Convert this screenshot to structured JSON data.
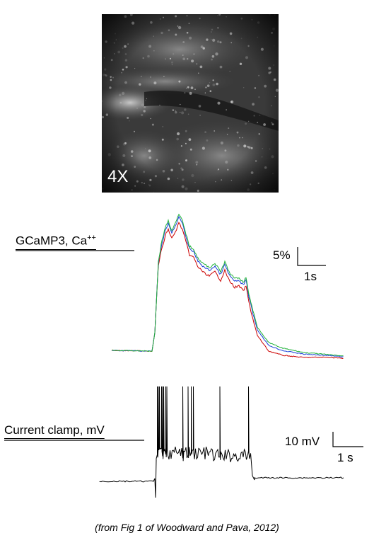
{
  "micrograph": {
    "magnification_label": "4X"
  },
  "calcium_panel": {
    "label_main": "GCaMP3, Ca",
    "label_superscript": "++",
    "scale_y_label": "5%",
    "scale_x_label": "1s",
    "trace_colors": [
      "#cc0000",
      "#1a3fd9",
      "#22b33a"
    ]
  },
  "voltage_panel": {
    "label": "Current clamp, mV",
    "scale_y_label": "10 mV",
    "scale_x_label": "1 s",
    "trace_color": "#000000"
  },
  "caption": "(from Fig 1 of Woodward and Pava, 2012)"
}
